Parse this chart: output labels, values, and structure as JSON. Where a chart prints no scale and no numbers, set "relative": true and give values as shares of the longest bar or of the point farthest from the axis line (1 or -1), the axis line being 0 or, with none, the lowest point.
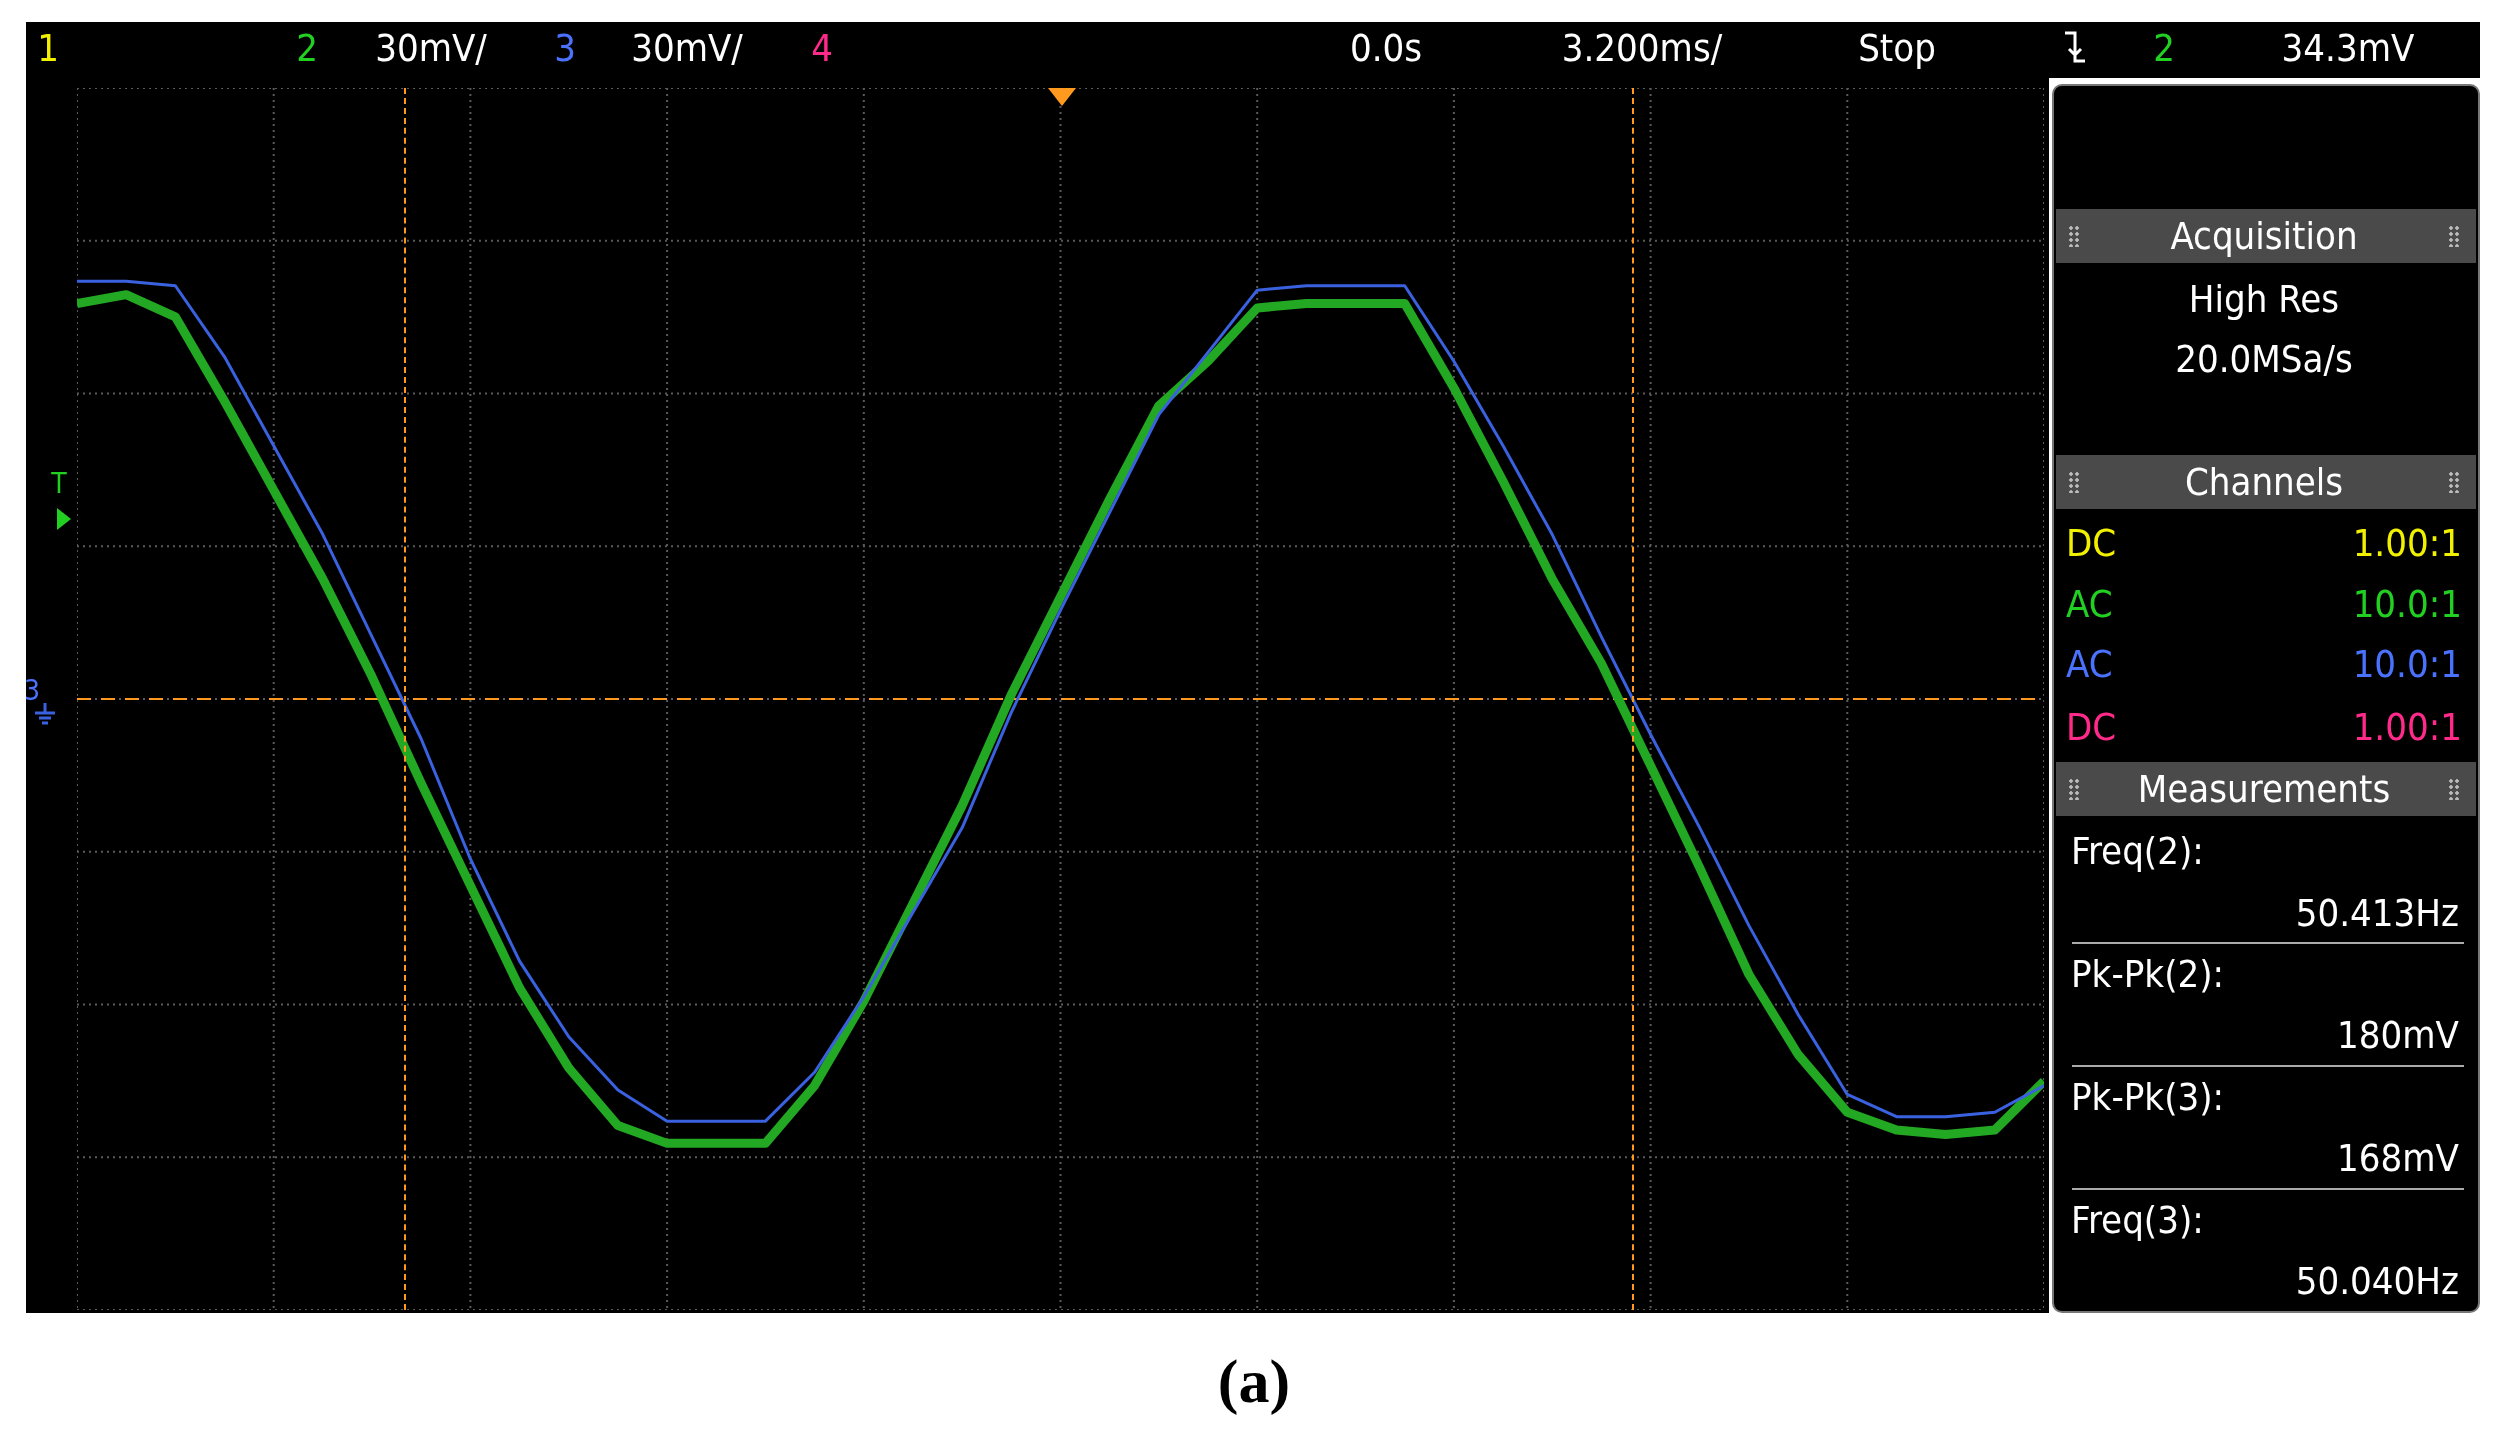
{
  "chart_data": {
    "type": "line",
    "relative": true,
    "grid": true,
    "legend": false,
    "marker": "none",
    "line_style": "solid",
    "categories": [
      null,
      null,
      null,
      null,
      null,
      null,
      null,
      null,
      null,
      null,
      null,
      null,
      null,
      null,
      null,
      null,
      null,
      null,
      null,
      null,
      null,
      null,
      null,
      null,
      null,
      null,
      null,
      null,
      null,
      null,
      null,
      null,
      null,
      null,
      null,
      null,
      null,
      null,
      null,
      null,
      null
    ],
    "series": [
      {
        "color": "#22a822",
        "values": [
          0.89,
          0.91,
          0.86,
          0.67,
          0.47,
          0.27,
          0.05,
          -0.19,
          -0.42,
          -0.65,
          -0.83,
          -0.96,
          -1.0,
          -1.0,
          -1.0,
          -0.87,
          -0.68,
          -0.46,
          -0.24,
          0.01,
          0.23,
          0.45,
          0.66,
          0.76,
          0.88,
          0.89,
          0.89,
          0.89,
          0.7,
          0.49,
          0.27,
          0.08,
          -0.15,
          -0.38,
          -0.62,
          -0.8,
          -0.93,
          -0.97,
          -0.98,
          -0.97,
          -0.86
        ]
      },
      {
        "color": "#3a62e0",
        "values": [
          0.94,
          0.94,
          0.93,
          0.77,
          0.57,
          0.37,
          0.14,
          -0.09,
          -0.36,
          -0.59,
          -0.76,
          -0.88,
          -0.95,
          -0.95,
          -0.95,
          -0.84,
          -0.67,
          -0.48,
          -0.29,
          -0.03,
          0.2,
          0.42,
          0.64,
          0.78,
          0.92,
          0.93,
          0.93,
          0.93,
          0.76,
          0.57,
          0.37,
          0.14,
          -0.08,
          -0.29,
          -0.51,
          -0.71,
          -0.89,
          -0.94,
          -0.94,
          -0.93,
          -0.87
        ]
      }
    ],
    "ref_lines": [
      {
        "axis": "y",
        "value": 0,
        "color": "#ff9a1f",
        "line_style": "dashed"
      }
    ],
    "annotations": [
      "1",
      "2",
      "30mV/",
      "3",
      "30mV/",
      "4",
      "0.0s",
      "3.200ms/",
      "Stop",
      "2",
      "34.3mV",
      "Acquisition",
      "High Res",
      "20.0MSa/s",
      "Channels",
      "DC",
      "1.00:1",
      "AC",
      "10.0:1",
      "AC",
      "10.0:1",
      "DC",
      "1.00:1",
      "Measurements",
      "Freq(2):",
      "50.413Hz",
      "Pk-Pk(2):",
      "180mV",
      "Pk-Pk(3):",
      "168mV",
      "Freq(3):",
      "50.040Hz",
      "T",
      "3",
      "(a)"
    ]
  }
}
